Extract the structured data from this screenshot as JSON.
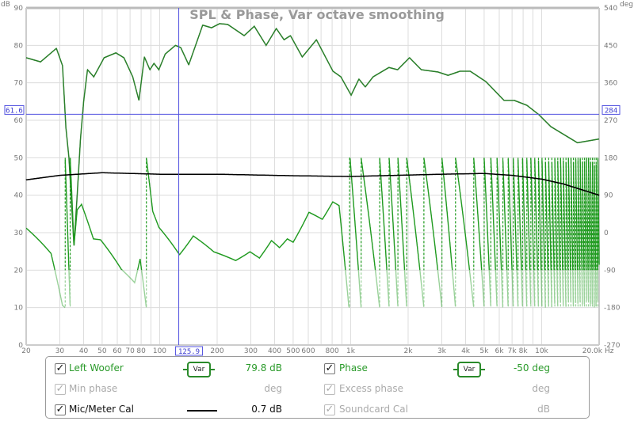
{
  "chart_data": {
    "type": "line",
    "title": "SPL & Phase, Var octave smoothing",
    "x_scale": "log",
    "xlim": [
      20,
      20000
    ],
    "x_unit": "Hz",
    "x_ticks": [
      {
        "v": 20,
        "label": "20"
      },
      {
        "v": 30,
        "label": "30"
      },
      {
        "v": 40,
        "label": "40"
      },
      {
        "v": 50,
        "label": "50"
      },
      {
        "v": 60,
        "label": "60"
      },
      {
        "v": 70,
        "label": "70"
      },
      {
        "v": 80,
        "label": "80"
      },
      {
        "v": 100,
        "label": "100"
      },
      {
        "v": 200,
        "label": "200"
      },
      {
        "v": 300,
        "label": "300"
      },
      {
        "v": 400,
        "label": "400"
      },
      {
        "v": 500,
        "label": "500"
      },
      {
        "v": 600,
        "label": "600"
      },
      {
        "v": 800,
        "label": "800"
      },
      {
        "v": 1000,
        "label": "1k"
      },
      {
        "v": 2000,
        "label": "2k"
      },
      {
        "v": 3000,
        "label": "3k"
      },
      {
        "v": 4000,
        "label": "4k"
      },
      {
        "v": 5000,
        "label": "5k"
      },
      {
        "v": 6000,
        "label": "6k"
      },
      {
        "v": 7000,
        "label": "7k"
      },
      {
        "v": 8000,
        "label": "8k"
      },
      {
        "v": 10000,
        "label": "10k"
      },
      {
        "v": 20000,
        "label": "20.0k"
      }
    ],
    "x_grid": [
      20,
      30,
      40,
      50,
      60,
      70,
      80,
      90,
      100,
      200,
      300,
      400,
      500,
      600,
      700,
      800,
      900,
      1000,
      2000,
      3000,
      4000,
      5000,
      6000,
      7000,
      8000,
      9000,
      10000,
      20000
    ],
    "y_left": {
      "unit": "dB",
      "ylim": [
        0,
        90
      ],
      "ticks": [
        0,
        10,
        20,
        30,
        40,
        50,
        60,
        70,
        80,
        90
      ]
    },
    "y_right": {
      "unit": "deg",
      "ylim": [
        -270,
        540
      ],
      "ticks": [
        -270,
        -180,
        -90,
        0,
        90,
        180,
        270,
        360,
        450,
        540
      ]
    },
    "grid": true,
    "cursor": {
      "x_label": "125.9",
      "y_left_label": "61.6",
      "y_right_label": "284",
      "x": 125.9,
      "y_db": 61.6
    },
    "series": [
      {
        "name": "Left Woofer",
        "axis": "left",
        "color": "#2a7f2a",
        "points": [
          [
            20,
            76.7
          ],
          [
            23.8,
            75.6
          ],
          [
            28.8,
            79.2
          ],
          [
            31,
            74.6
          ],
          [
            32.3,
            58
          ],
          [
            33.5,
            50
          ],
          [
            35.6,
            26.5
          ],
          [
            37,
            40
          ],
          [
            38.5,
            55
          ],
          [
            40,
            65
          ],
          [
            41.9,
            73.5
          ],
          [
            45.2,
            71.6
          ],
          [
            51.2,
            76.7
          ],
          [
            59,
            78
          ],
          [
            65,
            76.7
          ],
          [
            72.3,
            71.6
          ],
          [
            77.9,
            65.3
          ],
          [
            83.2,
            76.9
          ],
          [
            88.9,
            73.5
          ],
          [
            93.4,
            75.2
          ],
          [
            99,
            73.5
          ],
          [
            107,
            77.7
          ],
          [
            121,
            80
          ],
          [
            129,
            79.4
          ],
          [
            142,
            74.8
          ],
          [
            168,
            85.4
          ],
          [
            187,
            84.7
          ],
          [
            206,
            85.8
          ],
          [
            227,
            85.6
          ],
          [
            277,
            82.6
          ],
          [
            313,
            85.1
          ],
          [
            361,
            80
          ],
          [
            408,
            84.5
          ],
          [
            448,
            81.5
          ],
          [
            484,
            82.6
          ],
          [
            558,
            76.9
          ],
          [
            662,
            81.5
          ],
          [
            808,
            73.1
          ],
          [
            889,
            71.6
          ],
          [
            1006,
            66.7
          ],
          [
            1105,
            71
          ],
          [
            1193,
            68.9
          ],
          [
            1311,
            71.6
          ],
          [
            1587,
            74.1
          ],
          [
            1762,
            73.5
          ],
          [
            2033,
            76.7
          ],
          [
            2344,
            73.5
          ],
          [
            2862,
            72.9
          ],
          [
            3236,
            72
          ],
          [
            3738,
            73.1
          ],
          [
            4227,
            73.1
          ],
          [
            5113,
            70.3
          ],
          [
            6358,
            65.3
          ],
          [
            7197,
            65.3
          ],
          [
            8373,
            64
          ],
          [
            9674,
            61.5
          ],
          [
            11178,
            58.3
          ],
          [
            15400,
            54
          ],
          [
            20000,
            55
          ]
        ]
      },
      {
        "name": "Phase",
        "axis": "right",
        "color": "#1f9a1f",
        "wrap": [
          -180,
          180
        ],
        "points": [
          [
            20,
            11
          ],
          [
            27,
            -50
          ],
          [
            31,
            -175
          ],
          [
            32,
            -180
          ],
          [
            34,
            -540
          ],
          [
            35.6,
            -750
          ],
          [
            37,
            -665
          ],
          [
            39,
            -652
          ],
          [
            45,
            -735
          ],
          [
            49,
            -737
          ],
          [
            63,
            -808
          ],
          [
            74,
            -840
          ],
          [
            79,
            -783
          ],
          [
            85,
            -897
          ],
          [
            92,
            -1029
          ],
          [
            99,
            -1067
          ],
          [
            127,
            -1133
          ],
          [
            150,
            -1088
          ],
          [
            192,
            -1126
          ],
          [
            250,
            -1147
          ],
          [
            297,
            -1126
          ],
          [
            333,
            -1141
          ],
          [
            385,
            -1099
          ],
          [
            424,
            -1116
          ],
          [
            466,
            -1095
          ],
          [
            500,
            -1103
          ],
          [
            605,
            -1031
          ],
          [
            711,
            -1048
          ],
          [
            806,
            -1006
          ],
          [
            870,
            -1015
          ],
          [
            978,
            -1257
          ],
          [
            993,
            -1262
          ],
          [
            1134,
            -1620
          ],
          [
            1418,
            -1980
          ],
          [
            1590,
            -2340
          ],
          [
            1768,
            -2700
          ],
          [
            1965,
            -3060
          ],
          [
            2418,
            -3420
          ],
          [
            3005,
            -3780
          ],
          [
            3540,
            -4140
          ],
          [
            4410,
            -4500
          ],
          [
            5000,
            -4860
          ],
          [
            20000,
            -17717
          ]
        ]
      },
      {
        "name": "Mic/Meter Cal",
        "axis": "left",
        "color": "#000000",
        "points": [
          [
            20,
            44.1
          ],
          [
            30,
            45.3
          ],
          [
            50,
            46
          ],
          [
            100,
            45.6
          ],
          [
            200,
            45.6
          ],
          [
            500,
            45.2
          ],
          [
            1000,
            45
          ],
          [
            3000,
            45.6
          ],
          [
            5000,
            45.8
          ],
          [
            7000,
            45.3
          ],
          [
            10000,
            44.3
          ],
          [
            13000,
            43
          ],
          [
            20000,
            40
          ]
        ]
      }
    ]
  },
  "legend": {
    "rows": [
      {
        "left": {
          "label": "Left Woofer",
          "checked": true,
          "smoothing": "Var",
          "value": "79.8 dB"
        },
        "right": {
          "label": "Phase",
          "checked": true,
          "smoothing": "Var",
          "value": "-50 deg"
        }
      },
      {
        "left": {
          "label": "Min phase",
          "checked": true,
          "value": "deg"
        },
        "right": {
          "label": "Excess phase",
          "checked": true,
          "value": "deg"
        }
      },
      {
        "left": {
          "label": "Mic/Meter Cal",
          "checked": true,
          "value": "0.7 dB"
        },
        "right": {
          "label": "Soundcard Cal",
          "checked": true,
          "value": "dB"
        }
      }
    ],
    "check_glyph": "✓"
  }
}
